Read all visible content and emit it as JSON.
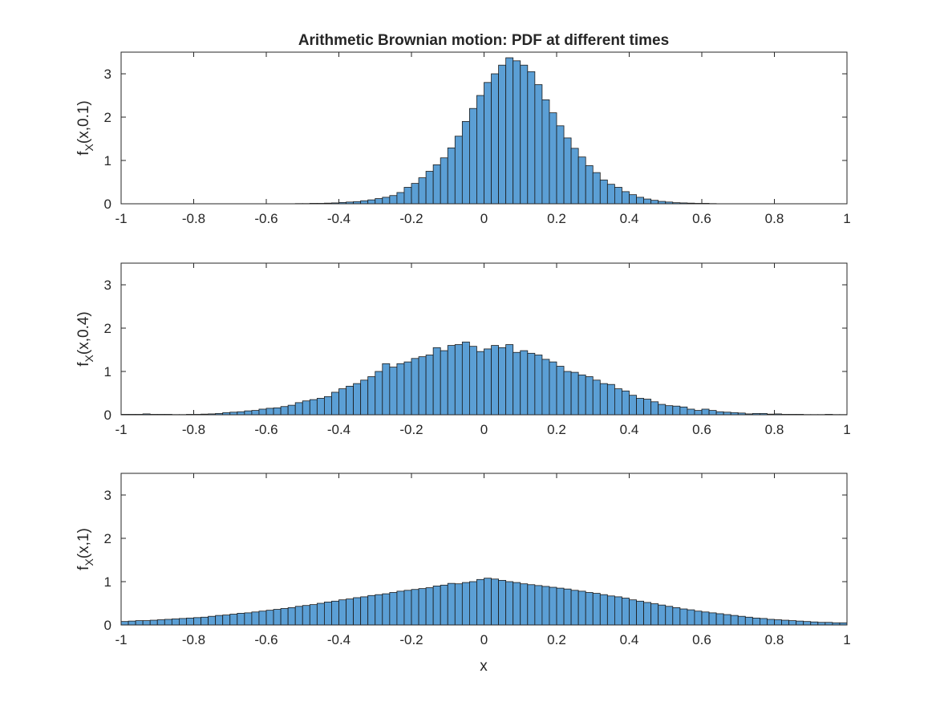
{
  "chart_data": {
    "title": "Arithmetic Brownian motion: PDF at different times",
    "xlabel": "x",
    "bar_color": "#5b9fd5",
    "edge_color": "#1a1a1a",
    "panels": [
      {
        "type": "bar",
        "ylabel": {
          "base": "f",
          "sub": "X",
          "rest": "(x,0.1)"
        },
        "xlim": [
          -1,
          1
        ],
        "ylim": [
          0,
          3.5
        ],
        "xticks": [
          "-1",
          "-0.8",
          "-0.6",
          "-0.4",
          "-0.2",
          "0",
          "0.2",
          "0.4",
          "0.6",
          "0.8",
          "1"
        ],
        "yticks": [
          "0",
          "1",
          "2",
          "3"
        ],
        "bin_start": -0.52,
        "bin_width": 0.02,
        "values": [
          0.005,
          0.005,
          0.01,
          0.01,
          0.015,
          0.02,
          0.03,
          0.04,
          0.05,
          0.07,
          0.09,
          0.12,
          0.15,
          0.19,
          0.26,
          0.38,
          0.47,
          0.6,
          0.75,
          0.9,
          1.06,
          1.29,
          1.56,
          1.9,
          2.2,
          2.5,
          2.8,
          3.0,
          3.2,
          3.37,
          3.3,
          3.2,
          3.05,
          2.75,
          2.4,
          2.1,
          1.8,
          1.52,
          1.28,
          1.08,
          0.88,
          0.72,
          0.55,
          0.45,
          0.38,
          0.28,
          0.21,
          0.15,
          0.11,
          0.08,
          0.055,
          0.04,
          0.025,
          0.02,
          0.015,
          0.01,
          0.01,
          0.005
        ]
      },
      {
        "type": "bar",
        "ylabel": {
          "base": "f",
          "sub": "X",
          "rest": "(x,0.4)"
        },
        "xlim": [
          -1,
          1
        ],
        "ylim": [
          0,
          3.5
        ],
        "xticks": [
          "-1",
          "-0.8",
          "-0.6",
          "-0.4",
          "-0.2",
          "0",
          "0.2",
          "0.4",
          "0.6",
          "0.8",
          "1"
        ],
        "yticks": [
          "0",
          "1",
          "2",
          "3"
        ],
        "bin_start": -1.0,
        "bin_width": 0.02,
        "values": [
          0.01,
          0.01,
          0.01,
          0.02,
          0.01,
          0.01,
          0.01,
          0.005,
          0.005,
          0.01,
          0.01,
          0.015,
          0.02,
          0.03,
          0.05,
          0.06,
          0.07,
          0.09,
          0.1,
          0.13,
          0.15,
          0.16,
          0.19,
          0.22,
          0.28,
          0.32,
          0.35,
          0.38,
          0.42,
          0.52,
          0.6,
          0.66,
          0.72,
          0.8,
          0.88,
          1.0,
          1.18,
          1.1,
          1.18,
          1.22,
          1.3,
          1.34,
          1.38,
          1.55,
          1.48,
          1.6,
          1.62,
          1.68,
          1.58,
          1.46,
          1.52,
          1.6,
          1.55,
          1.62,
          1.44,
          1.48,
          1.42,
          1.38,
          1.28,
          1.22,
          1.12,
          1.0,
          0.98,
          0.92,
          0.88,
          0.8,
          0.72,
          0.7,
          0.6,
          0.55,
          0.45,
          0.38,
          0.36,
          0.3,
          0.24,
          0.21,
          0.2,
          0.18,
          0.13,
          0.1,
          0.13,
          0.1,
          0.07,
          0.06,
          0.05,
          0.04,
          0.02,
          0.03,
          0.03,
          0.015,
          0.02,
          0.01,
          0.01,
          0.01,
          0.005,
          0.005,
          0.005,
          0.01,
          0.005,
          0.005
        ]
      },
      {
        "type": "bar",
        "ylabel": {
          "base": "f",
          "sub": "X",
          "rest": "(x,1)"
        },
        "xlim": [
          -1,
          1
        ],
        "ylim": [
          0,
          3.5
        ],
        "xticks": [
          "-1",
          "-0.8",
          "-0.6",
          "-0.4",
          "-0.2",
          "0",
          "0.2",
          "0.4",
          "0.6",
          "0.8",
          "1"
        ],
        "yticks": [
          "0",
          "1",
          "2",
          "3"
        ],
        "bin_start": -1.0,
        "bin_width": 0.02,
        "values": [
          0.08,
          0.09,
          0.1,
          0.1,
          0.11,
          0.12,
          0.13,
          0.14,
          0.15,
          0.16,
          0.17,
          0.18,
          0.2,
          0.22,
          0.23,
          0.25,
          0.27,
          0.28,
          0.3,
          0.32,
          0.34,
          0.36,
          0.38,
          0.4,
          0.43,
          0.45,
          0.47,
          0.5,
          0.53,
          0.55,
          0.58,
          0.6,
          0.63,
          0.65,
          0.68,
          0.7,
          0.72,
          0.75,
          0.78,
          0.8,
          0.82,
          0.84,
          0.86,
          0.9,
          0.92,
          0.96,
          0.95,
          0.98,
          1.0,
          1.05,
          1.08,
          1.06,
          1.03,
          1.0,
          0.98,
          0.95,
          0.93,
          0.91,
          0.89,
          0.87,
          0.85,
          0.83,
          0.8,
          0.78,
          0.75,
          0.73,
          0.7,
          0.67,
          0.65,
          0.62,
          0.58,
          0.55,
          0.52,
          0.49,
          0.46,
          0.43,
          0.4,
          0.37,
          0.35,
          0.32,
          0.3,
          0.28,
          0.26,
          0.24,
          0.22,
          0.2,
          0.18,
          0.16,
          0.15,
          0.13,
          0.12,
          0.11,
          0.1,
          0.09,
          0.08,
          0.07,
          0.06,
          0.06,
          0.05,
          0.05
        ]
      }
    ]
  }
}
